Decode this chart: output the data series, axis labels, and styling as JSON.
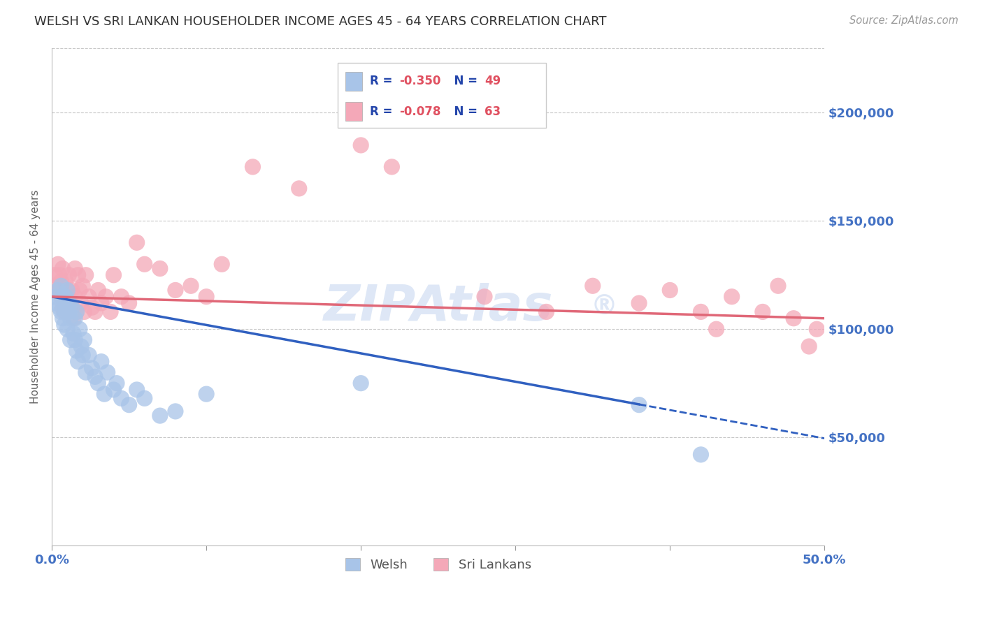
{
  "title": "WELSH VS SRI LANKAN HOUSEHOLDER INCOME AGES 45 - 64 YEARS CORRELATION CHART",
  "source": "Source: ZipAtlas.com",
  "ylabel": "Householder Income Ages 45 - 64 years",
  "ytick_labels": [
    "$50,000",
    "$100,000",
    "$150,000",
    "$200,000"
  ],
  "ytick_values": [
    50000,
    100000,
    150000,
    200000
  ],
  "xlim": [
    0.0,
    0.5
  ],
  "ylim": [
    0,
    230000
  ],
  "welsh_color": "#a8c4e8",
  "sri_color": "#f4a8b8",
  "welsh_line_color": "#3060c0",
  "sri_line_color": "#e06878",
  "axis_label_color": "#4472c4",
  "stat_text_color": "#2244aa",
  "stat_value_color": "#e05060",
  "watermark_color": "#c8d8f0",
  "welsh_scatter_x": [
    0.002,
    0.003,
    0.004,
    0.005,
    0.006,
    0.006,
    0.007,
    0.007,
    0.008,
    0.008,
    0.009,
    0.009,
    0.01,
    0.01,
    0.011,
    0.011,
    0.012,
    0.012,
    0.013,
    0.014,
    0.015,
    0.015,
    0.016,
    0.016,
    0.017,
    0.018,
    0.019,
    0.02,
    0.021,
    0.022,
    0.024,
    0.026,
    0.028,
    0.03,
    0.032,
    0.034,
    0.036,
    0.04,
    0.042,
    0.045,
    0.05,
    0.055,
    0.06,
    0.07,
    0.08,
    0.1,
    0.2,
    0.38,
    0.42
  ],
  "welsh_scatter_y": [
    115000,
    112000,
    118000,
    110000,
    108000,
    120000,
    105000,
    115000,
    102000,
    112000,
    108000,
    115000,
    100000,
    118000,
    108000,
    112000,
    95000,
    105000,
    110000,
    98000,
    105000,
    95000,
    90000,
    108000,
    85000,
    100000,
    92000,
    88000,
    95000,
    80000,
    88000,
    82000,
    78000,
    75000,
    85000,
    70000,
    80000,
    72000,
    75000,
    68000,
    65000,
    72000,
    68000,
    60000,
    62000,
    70000,
    75000,
    65000,
    42000
  ],
  "sri_scatter_x": [
    0.002,
    0.003,
    0.004,
    0.005,
    0.005,
    0.006,
    0.006,
    0.007,
    0.007,
    0.008,
    0.008,
    0.009,
    0.009,
    0.01,
    0.01,
    0.011,
    0.011,
    0.012,
    0.013,
    0.014,
    0.015,
    0.015,
    0.016,
    0.017,
    0.018,
    0.019,
    0.02,
    0.021,
    0.022,
    0.024,
    0.026,
    0.028,
    0.03,
    0.032,
    0.035,
    0.038,
    0.04,
    0.045,
    0.05,
    0.055,
    0.06,
    0.07,
    0.08,
    0.09,
    0.1,
    0.11,
    0.13,
    0.16,
    0.2,
    0.22,
    0.28,
    0.32,
    0.35,
    0.38,
    0.4,
    0.42,
    0.43,
    0.44,
    0.46,
    0.47,
    0.48,
    0.49,
    0.495
  ],
  "sri_scatter_y": [
    125000,
    120000,
    130000,
    118000,
    125000,
    115000,
    122000,
    110000,
    128000,
    115000,
    108000,
    122000,
    112000,
    118000,
    108000,
    125000,
    115000,
    110000,
    118000,
    105000,
    128000,
    115000,
    108000,
    125000,
    118000,
    112000,
    120000,
    108000,
    125000,
    115000,
    110000,
    108000,
    118000,
    112000,
    115000,
    108000,
    125000,
    115000,
    112000,
    140000,
    130000,
    128000,
    118000,
    120000,
    115000,
    130000,
    175000,
    165000,
    185000,
    175000,
    115000,
    108000,
    120000,
    112000,
    118000,
    108000,
    100000,
    115000,
    108000,
    120000,
    105000,
    92000,
    100000
  ]
}
